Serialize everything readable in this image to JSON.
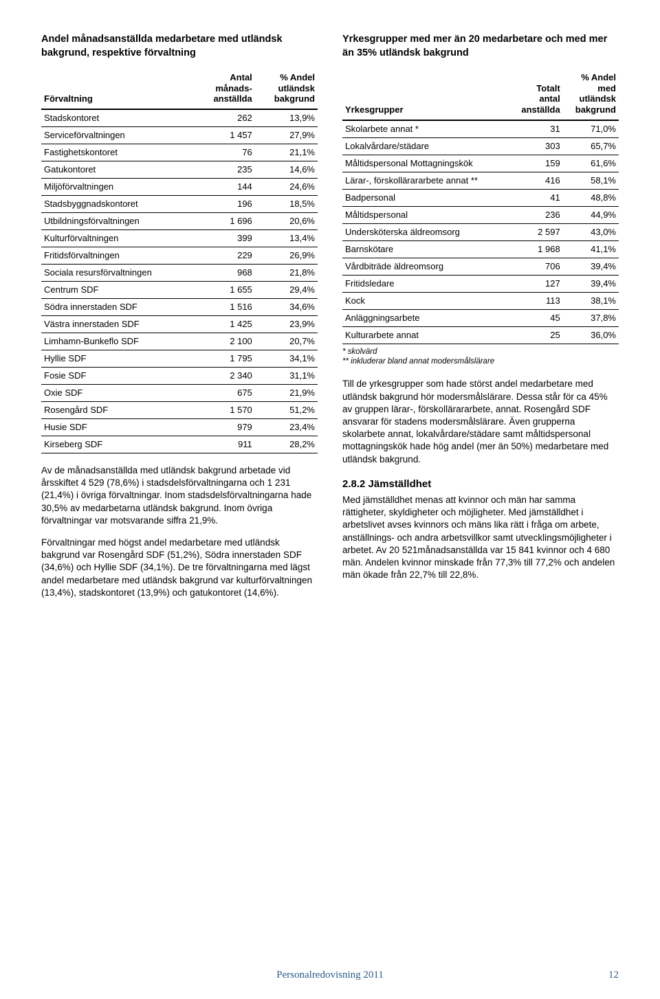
{
  "left": {
    "title": "Andel månadsanställda medarbetare med utländsk bakgrund, respektive förvaltning",
    "table": {
      "headers": [
        "Förvaltning",
        "Antal\nmånads-\nanställda",
        "% Andel\nutländsk\nbakgrund"
      ],
      "rows": [
        [
          "Stadskontoret",
          "262",
          "13,9%"
        ],
        [
          "Serviceförvaltningen",
          "1 457",
          "27,9%"
        ],
        [
          "Fastighetskontoret",
          "76",
          "21,1%"
        ],
        [
          "Gatukontoret",
          "235",
          "14,6%"
        ],
        [
          "Miljöförvaltningen",
          "144",
          "24,6%"
        ],
        [
          "Stadsbyggnadskontoret",
          "196",
          "18,5%"
        ],
        [
          "Utbildningsförvaltningen",
          "1 696",
          "20,6%"
        ],
        [
          "Kulturförvaltningen",
          "399",
          "13,4%"
        ],
        [
          "Fritidsförvaltningen",
          "229",
          "26,9%"
        ],
        [
          "Sociala resursförvaltningen",
          "968",
          "21,8%"
        ],
        [
          "Centrum SDF",
          "1 655",
          "29,4%"
        ],
        [
          "Södra innerstaden SDF",
          "1 516",
          "34,6%"
        ],
        [
          "Västra innerstaden SDF",
          "1 425",
          "23,9%"
        ],
        [
          "Limhamn-Bunkeflo SDF",
          "2 100",
          "20,7%"
        ],
        [
          "Hyllie SDF",
          "1 795",
          "34,1%"
        ],
        [
          "Fosie SDF",
          "2 340",
          "31,1%"
        ],
        [
          "Oxie SDF",
          "675",
          "21,9%"
        ],
        [
          "Rosengård SDF",
          "1 570",
          "51,2%"
        ],
        [
          "Husie SDF",
          "979",
          "23,4%"
        ],
        [
          "Kirseberg SDF",
          "911",
          "28,2%"
        ]
      ]
    },
    "paragraphs": [
      "Av de månadsanställda med utländsk bakgrund arbetade vid årsskiftet 4 529 (78,6%) i stadsdels­förvaltningarna och 1 231 (21,4%) i övriga förvalt­ningar. Inom stadsdelsförvaltningarna hade 30,5% av medarbetarna utländsk bakgrund. Inom övriga förvaltningar var motsvarande siffra 21,9%.",
      "Förvaltningar med högst andel medarbetare med utländsk bakgrund var Rosengård SDF (51,2%), Södra innerstaden SDF (34,6%) och Hyllie SDF (34,1%). De tre förvaltningarna med lägst andel medarbetare med utländsk bakgrund var kultur­förvaltningen (13,4%), stadskontoret (13,9%) och gatukontoret (14,6%)."
    ]
  },
  "right": {
    "title": "Yrkesgrupper med mer än 20 medarbetare och med mer än 35% utländsk bakgrund",
    "table": {
      "headers": [
        "Yrkesgrupper",
        "Totalt\nantal\nanställda",
        "% Andel\nmed\nutländsk\nbakgrund"
      ],
      "rows": [
        [
          "Skolarbete annat *",
          "31",
          "71,0%"
        ],
        [
          "Lokalvårdare/städare",
          "303",
          "65,7%"
        ],
        [
          "Måltidspersonal Mottagningskök",
          "159",
          "61,6%"
        ],
        [
          "Lärar-, förskollärararbete annat **",
          "416",
          "58,1%"
        ],
        [
          "Badpersonal",
          "41",
          "48,8%"
        ],
        [
          "Måltidspersonal",
          "236",
          "44,9%"
        ],
        [
          "Undersköterska äldreomsorg",
          "2 597",
          "43,0%"
        ],
        [
          "Barnskötare",
          "1 968",
          "41,1%"
        ],
        [
          "Vårdbiträde äldreomsorg",
          "706",
          "39,4%"
        ],
        [
          "Fritidsledare",
          "127",
          "39,4%"
        ],
        [
          "Kock",
          "113",
          "38,1%"
        ],
        [
          "Anläggningsarbete",
          "45",
          "37,8%"
        ],
        [
          "Kulturarbete annat",
          "25",
          "36,0%"
        ]
      ]
    },
    "footnotes": [
      "* skolvärd",
      "** inkluderar bland annat modersmålslärare"
    ],
    "paragraphs": [
      "Till de yrkesgrupper som hade störst andel medarbetare med utländsk bakgrund hör modersmålslärare. Dessa står för ca 45% av gruppen lärar-, förskollärararbete, annat. Rosengård SDF ansvarar för stadens modersmålslärare. Även grupperna skolarbete annat, lokalvårdare/städare samt måltidspersonal mottagningskök hade hög andel (mer än 50%) medarbetare med utländsk bakgrund."
    ],
    "subheading": "2.8.2 Jämställdhet",
    "subparagraph": "Med jämställdhet menas att kvinnor och män har samma rättigheter, skyldigheter och möjligheter. Med jämställdhet i arbetslivet avses kvinnors och mäns lika rätt i fråga om arbete, anställnings- och andra arbetsvillkor samt utvecklingsmöjligheter i arbetet. Av 20 521månadsanställda var 15 841 kvinnor och 4 680 män. Andelen kvinnor minskade från 77,3% till 77,2% och andelen män ökade från 22,7% till 22,8%."
  },
  "footer": {
    "text": "Personalredovisning 2011",
    "page": "12"
  }
}
